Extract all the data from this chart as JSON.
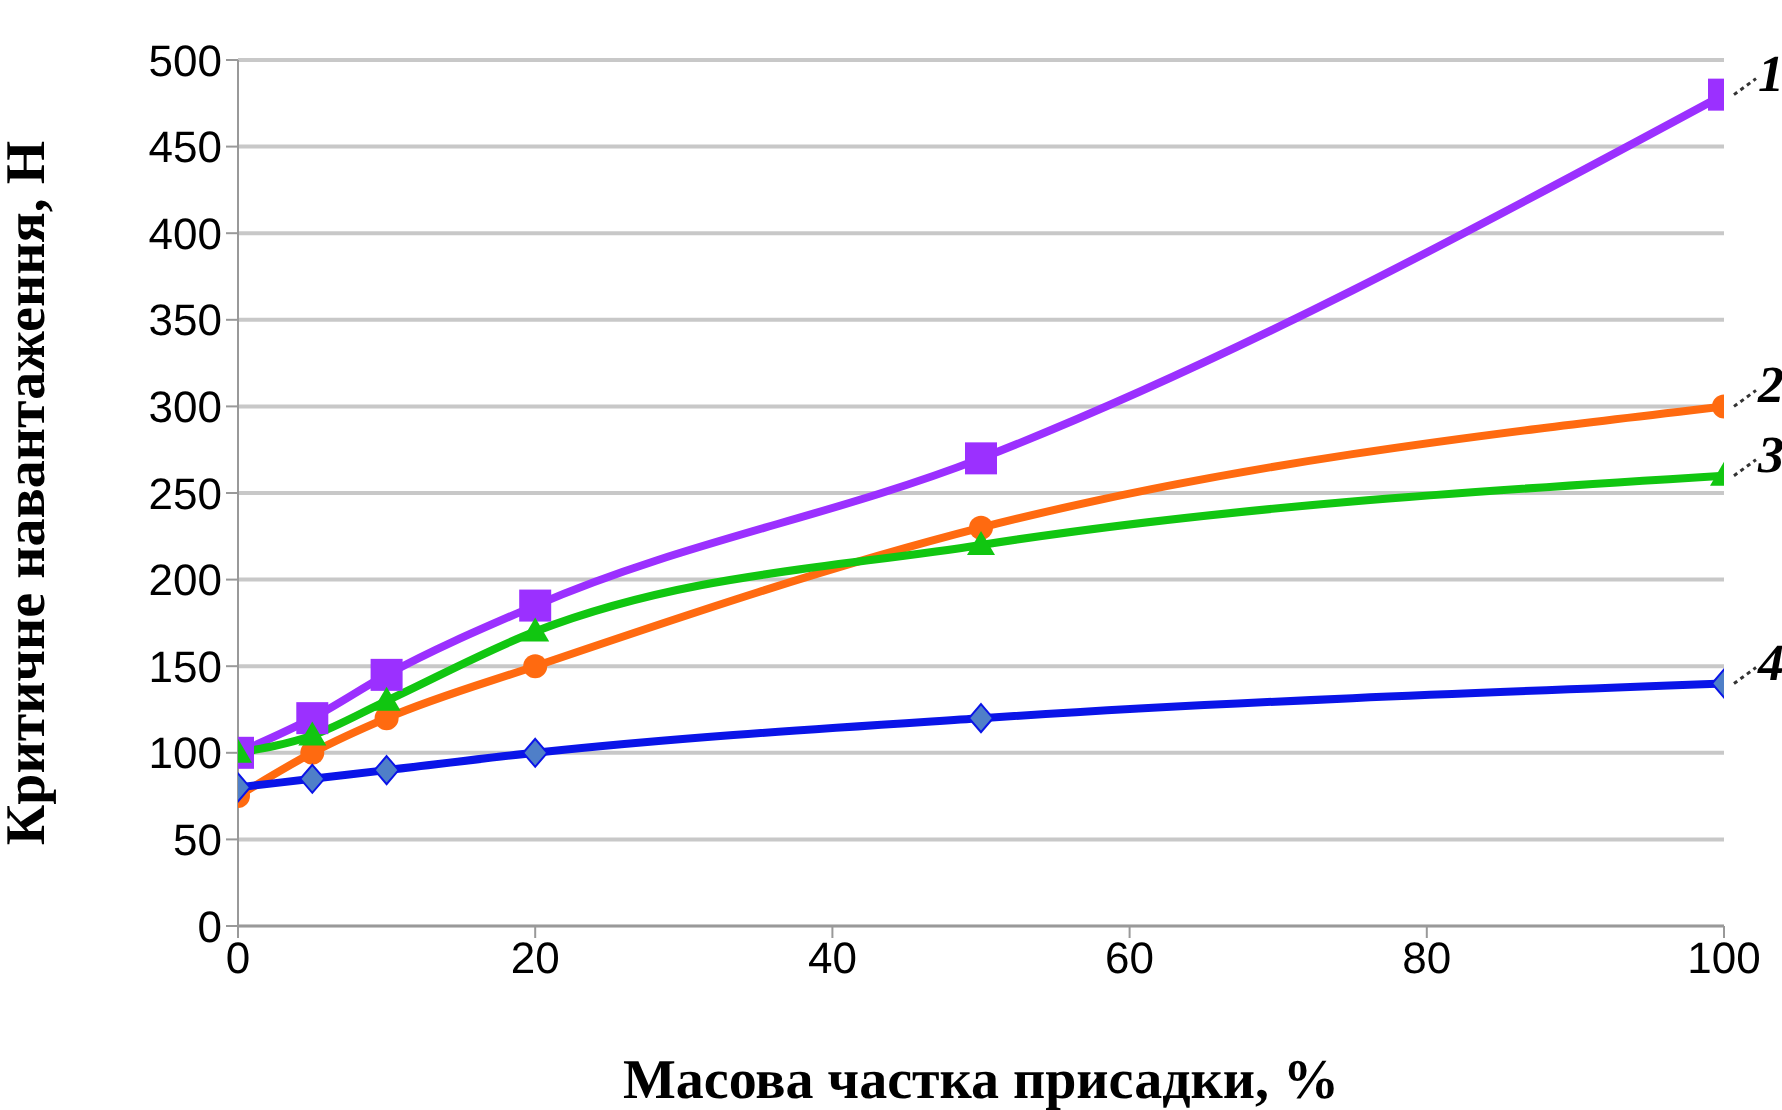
{
  "chart_data": {
    "type": "line",
    "xlabel": "Масова частка присадки, %",
    "ylabel": "Критичне  навантаження, Н",
    "x": [
      0,
      5,
      10,
      20,
      50,
      100
    ],
    "series": [
      {
        "name": "1",
        "color": "#9b30ff",
        "marker": "square",
        "values": [
          100,
          120,
          145,
          185,
          270,
          480
        ]
      },
      {
        "name": "2",
        "color": "#ff6a10",
        "marker": "circle",
        "values": [
          75,
          100,
          120,
          150,
          230,
          300
        ]
      },
      {
        "name": "3",
        "color": "#11c611",
        "marker": "triangle",
        "values": [
          100,
          110,
          130,
          170,
          220,
          260
        ]
      },
      {
        "name": "4",
        "color": "#0a14e8",
        "marker": "diamond",
        "values": [
          80,
          85,
          90,
          100,
          120,
          140
        ]
      }
    ],
    "xlim": [
      0,
      100
    ],
    "xticks": [
      0,
      20,
      40,
      60,
      80,
      100
    ],
    "ylim": [
      0,
      500
    ],
    "yticks": [
      0,
      50,
      100,
      150,
      200,
      250,
      300,
      350,
      400,
      450,
      500
    ],
    "grid": "y",
    "legend": false
  }
}
